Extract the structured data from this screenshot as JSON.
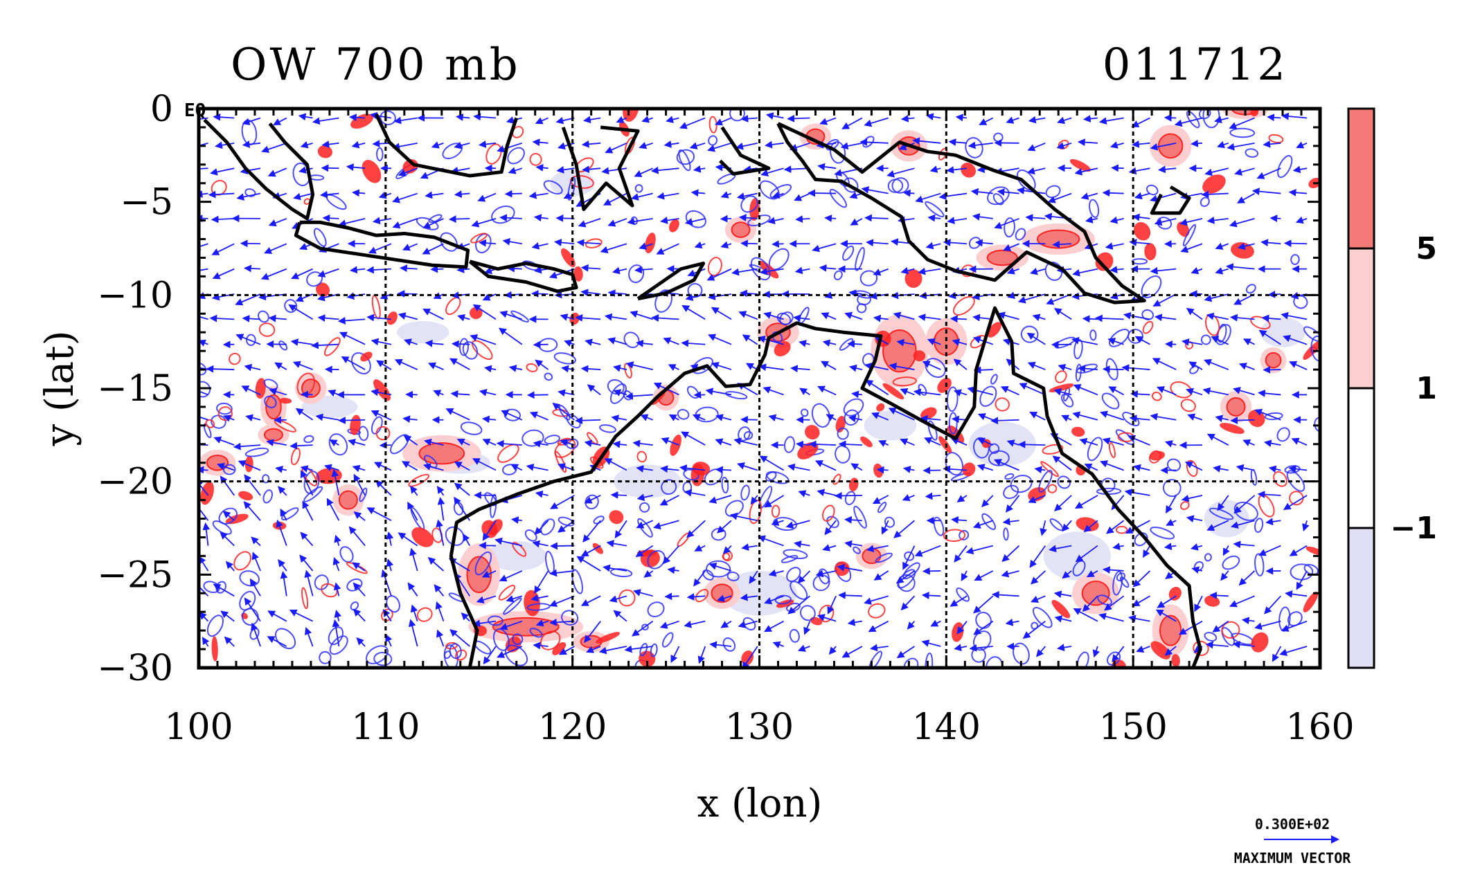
{
  "chart_data": {
    "type": "map",
    "title_left": "OW 700 mb",
    "title_right": "011712",
    "xlabel": "x (lon)",
    "ylabel": "y (lat)",
    "xlim": [
      100,
      160
    ],
    "ylim": [
      -30,
      0
    ],
    "x_ticks": [
      100,
      110,
      120,
      130,
      140,
      150,
      160
    ],
    "x_tick_labels": [
      "100",
      "110",
      "120",
      "130",
      "140",
      "150",
      "160"
    ],
    "y_ticks": [
      0,
      -5,
      -10,
      -15,
      -20,
      -25,
      -30
    ],
    "y_tick_labels": [
      "0",
      "−5",
      "−10",
      "−15",
      "−20",
      "−25",
      "−30"
    ],
    "equator_label": "EQ",
    "gridlines_lon": [
      110,
      120,
      130,
      140,
      150
    ],
    "gridlines_lat": [
      -10,
      -20
    ],
    "colorbar": {
      "levels": [
        "5",
        "1",
        "−1"
      ],
      "level_values": [
        5,
        1,
        -1
      ],
      "colors": [
        "#f47a7a",
        "#fbcfcf",
        "#ffffff",
        "#dfe0f6"
      ]
    },
    "colors": {
      "vectors": "#1a1aff",
      "positive_contour": "#ff2020",
      "negative_contour": "#2b2bff",
      "coast": "#000000"
    },
    "vector_legend": {
      "value": "0.300E+02",
      "label": "MAXIMUM VECTOR"
    },
    "red_patches": [
      [
        113,
        -18.5,
        1.5,
        0.7
      ],
      [
        117.5,
        -27.8,
        2.2,
        0.6
      ],
      [
        115,
        -25,
        0.8,
        1.2
      ],
      [
        106,
        -15,
        0.6,
        0.6
      ],
      [
        104,
        -16,
        0.5,
        0.8
      ],
      [
        108,
        -21,
        0.6,
        0.6
      ],
      [
        101,
        -19,
        0.7,
        0.5
      ],
      [
        104,
        -17.5,
        0.6,
        0.4
      ],
      [
        121,
        -28.6,
        0.7,
        0.4
      ],
      [
        137.5,
        -13,
        1.1,
        1.4
      ],
      [
        140,
        -12.5,
        0.8,
        0.9
      ],
      [
        146,
        -7,
        1.4,
        0.6
      ],
      [
        152,
        -2,
        0.8,
        0.8
      ],
      [
        155.5,
        -16,
        0.6,
        0.6
      ],
      [
        157.5,
        -13.5,
        0.5,
        0.5
      ],
      [
        129,
        -6.5,
        0.6,
        0.5
      ],
      [
        133,
        -1.5,
        0.6,
        0.5
      ],
      [
        131,
        -12,
        0.8,
        0.6
      ],
      [
        156,
        0,
        0.9,
        0.4
      ],
      [
        148,
        -26,
        0.9,
        0.8
      ],
      [
        152,
        -28,
        0.7,
        1.0
      ],
      [
        125,
        -15.5,
        0.5,
        0.5
      ],
      [
        128,
        -26,
        0.7,
        0.6
      ],
      [
        136,
        -24,
        0.6,
        0.5
      ],
      [
        143,
        -8,
        1.0,
        0.5
      ],
      [
        138,
        -2,
        0.7,
        0.6
      ]
    ],
    "blue_patches": [
      [
        120,
        -4,
        1.2,
        0.7
      ],
      [
        107,
        -16,
        1.5,
        0.6
      ],
      [
        114,
        -19,
        1.6,
        0.6
      ],
      [
        124,
        -20,
        1.8,
        0.9
      ],
      [
        143,
        -18,
        1.8,
        1.2
      ],
      [
        147,
        -24,
        1.8,
        1.3
      ],
      [
        155,
        -22,
        1.2,
        1.0
      ],
      [
        130,
        -26,
        2.0,
        1.2
      ],
      [
        117,
        -24,
        1.6,
        0.8
      ],
      [
        112,
        -12,
        1.4,
        0.6
      ],
      [
        137,
        -17,
        1.4,
        0.8
      ],
      [
        158,
        -12,
        1.2,
        0.8
      ]
    ],
    "coastlines": [
      [
        [
          100.3,
          -0.6
        ],
        [
          101.5,
          -1.8
        ],
        [
          102.5,
          -3.2
        ],
        [
          103.6,
          -4.3
        ],
        [
          105,
          -5.4
        ],
        [
          105.8,
          -5.9
        ],
        [
          106.1,
          -4.6
        ],
        [
          105.8,
          -3
        ],
        [
          104.6,
          -1.8
        ],
        [
          103.8,
          -0.8
        ]
      ],
      [
        [
          109.5,
          -0.3
        ],
        [
          110.2,
          -1.8
        ],
        [
          111.5,
          -3
        ],
        [
          113,
          -3.3
        ],
        [
          114.5,
          -3.6
        ],
        [
          116.2,
          -3.4
        ],
        [
          116.5,
          -2
        ],
        [
          117,
          -0.5
        ]
      ],
      [
        [
          105.4,
          -6.1
        ],
        [
          106.5,
          -6.1
        ],
        [
          108,
          -6.4
        ],
        [
          109.5,
          -6.8
        ],
        [
          111,
          -6.7
        ],
        [
          112.6,
          -6.9
        ],
        [
          114.4,
          -7.6
        ],
        [
          114.3,
          -8.5
        ],
        [
          112.5,
          -8.4
        ],
        [
          110.5,
          -8.1
        ],
        [
          108.5,
          -7.8
        ],
        [
          106.5,
          -7.5
        ],
        [
          105.2,
          -6.8
        ],
        [
          105.4,
          -6.1
        ]
      ],
      [
        [
          114.5,
          -8.2
        ],
        [
          116,
          -8.6
        ],
        [
          117.5,
          -8.3
        ],
        [
          119,
          -8.6
        ],
        [
          120,
          -8.9
        ],
        [
          120.2,
          -9.6
        ],
        [
          119.2,
          -9.8
        ],
        [
          117.5,
          -9.3
        ],
        [
          115.5,
          -9.0
        ],
        [
          114.5,
          -8.2
        ]
      ],
      [
        [
          123.5,
          -10.2
        ],
        [
          124.5,
          -9.5
        ],
        [
          125.8,
          -8.6
        ],
        [
          127,
          -8.3
        ],
        [
          126.5,
          -9.2
        ],
        [
          125,
          -9.9
        ],
        [
          123.5,
          -10.2
        ]
      ],
      [
        [
          119.5,
          -1
        ],
        [
          120.2,
          -3
        ],
        [
          120.6,
          -5.4
        ],
        [
          121.8,
          -4
        ],
        [
          123.2,
          -5.2
        ],
        [
          122.5,
          -3.2
        ],
        [
          123.5,
          -1.2
        ],
        [
          121.5,
          -1
        ]
      ],
      [
        [
          128,
          -1
        ],
        [
          129,
          -2.5
        ],
        [
          130.5,
          -3.2
        ],
        [
          128.6,
          -3.5
        ],
        [
          127.9,
          -2.8
        ]
      ],
      [
        [
          131,
          -0.8
        ],
        [
          132.5,
          -1.5
        ],
        [
          134,
          -2.2
        ],
        [
          135.5,
          -3.4
        ],
        [
          137.5,
          -1.8
        ],
        [
          139,
          -2.3
        ],
        [
          140.5,
          -2.5
        ],
        [
          142.5,
          -3.3
        ],
        [
          144,
          -3.8
        ],
        [
          145.8,
          -5.4
        ],
        [
          147.4,
          -6.6
        ],
        [
          148,
          -8
        ],
        [
          149.4,
          -9.5
        ],
        [
          150.6,
          -10.3
        ],
        [
          149,
          -10.4
        ],
        [
          147.4,
          -9.9
        ],
        [
          146.2,
          -8.6
        ],
        [
          144.3,
          -7.7
        ],
        [
          142.6,
          -9.2
        ],
        [
          140.5,
          -8.7
        ],
        [
          139,
          -8.1
        ],
        [
          138,
          -7.1
        ],
        [
          137.6,
          -5.8
        ],
        [
          136,
          -4.8
        ],
        [
          134.4,
          -3.9
        ],
        [
          133,
          -3.8
        ],
        [
          132.3,
          -2.8
        ],
        [
          131.5,
          -1.8
        ],
        [
          131,
          -0.8
        ]
      ],
      [
        [
          152,
          -4.2
        ],
        [
          153,
          -4.8
        ],
        [
          152.5,
          -5.6
        ],
        [
          151,
          -5.6
        ],
        [
          151.5,
          -4.6
        ]
      ],
      [
        [
          114.5,
          -30
        ],
        [
          114.9,
          -28
        ],
        [
          114,
          -26
        ],
        [
          113.5,
          -24
        ],
        [
          113.8,
          -22.2
        ],
        [
          115,
          -21.5
        ],
        [
          117,
          -20.7
        ],
        [
          119,
          -20
        ],
        [
          121,
          -19.5
        ],
        [
          122.3,
          -17.6
        ],
        [
          123.5,
          -16.5
        ],
        [
          124.5,
          -15.5
        ],
        [
          126,
          -14.2
        ],
        [
          127.2,
          -13.8
        ],
        [
          128.2,
          -14.9
        ],
        [
          129.5,
          -14.8
        ],
        [
          130.3,
          -13.2
        ],
        [
          130.5,
          -12.3
        ],
        [
          132,
          -11.5
        ],
        [
          133,
          -11.8
        ],
        [
          134.5,
          -12
        ],
        [
          136.5,
          -12.2
        ],
        [
          136.2,
          -13.5
        ],
        [
          135.5,
          -15
        ],
        [
          137,
          -15.8
        ],
        [
          138.8,
          -16.8
        ],
        [
          140.5,
          -17.7
        ],
        [
          141.5,
          -16
        ],
        [
          141.6,
          -14
        ],
        [
          142.2,
          -12
        ],
        [
          142.6,
          -10.7
        ],
        [
          143.5,
          -12.5
        ],
        [
          143.6,
          -14.2
        ],
        [
          145.2,
          -15
        ],
        [
          145.4,
          -16.5
        ],
        [
          146.2,
          -18.5
        ],
        [
          147.8,
          -19.6
        ],
        [
          149.2,
          -21.5
        ],
        [
          150.6,
          -23
        ],
        [
          151.8,
          -24.5
        ],
        [
          153,
          -25.6
        ],
        [
          153.2,
          -27.5
        ],
        [
          153.6,
          -29
        ],
        [
          153.2,
          -30
        ]
      ]
    ]
  }
}
